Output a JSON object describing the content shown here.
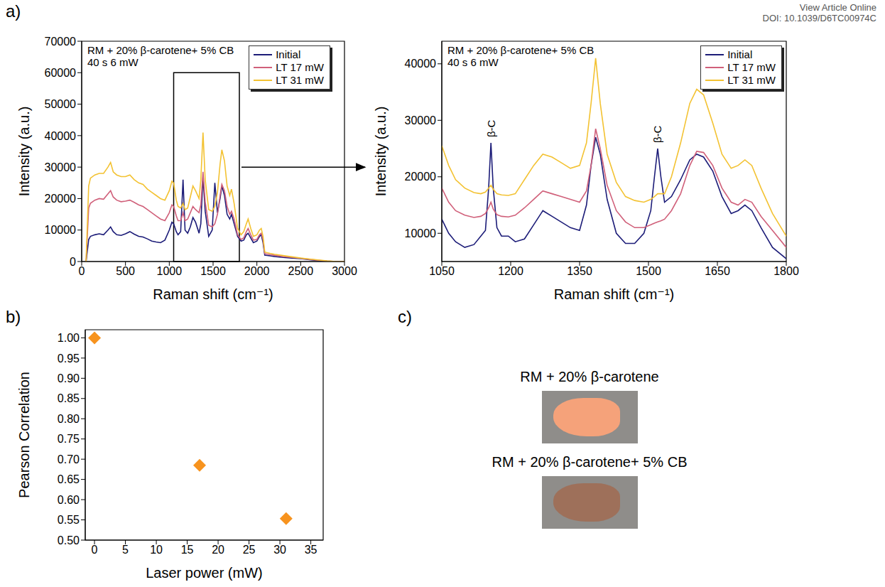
{
  "header": [
    "View Article Online",
    "DOI: 10.1039/D6TC00974C"
  ],
  "chart_data": [
    {
      "panel": "a)",
      "type": "line",
      "annotations": [
        "RM + 20% β-carotene+ 5% CB",
        "40 s 6 mW"
      ],
      "x_label": "Raman shift (cm⁻¹)",
      "y_label": "Intensity (a.u.)",
      "legend": "top-right",
      "xlim": [
        0,
        3000
      ],
      "xticks": [
        0,
        500,
        1000,
        1500,
        2000,
        2500,
        3000
      ],
      "ylim": [
        0,
        70000
      ],
      "yticks": [
        0,
        10000,
        20000,
        30000,
        40000,
        50000,
        60000,
        70000
      ],
      "x": [
        50,
        80,
        100,
        150,
        200,
        250,
        300,
        330,
        360,
        400,
        450,
        500,
        550,
        600,
        650,
        700,
        750,
        800,
        850,
        900,
        950,
        1000,
        1030,
        1050,
        1080,
        1100,
        1130,
        1157,
        1180,
        1210,
        1240,
        1270,
        1300,
        1340,
        1360,
        1385,
        1410,
        1450,
        1490,
        1520,
        1550,
        1580,
        1600,
        1630,
        1660,
        1690,
        1710,
        1740,
        1780,
        1820,
        1850,
        1880,
        1900,
        1930,
        1960,
        2000,
        2030,
        2050,
        2070,
        2090,
        2150,
        2200,
        2300,
        2400,
        2500,
        2600,
        2700,
        2800,
        2900,
        3000
      ],
      "series": [
        {
          "name": "Initial",
          "color": "#1c1c78",
          "values": [
            0,
            7000,
            8000,
            8500,
            8800,
            8500,
            10000,
            11000,
            9500,
            8500,
            8300,
            8800,
            9500,
            8700,
            8000,
            7800,
            7200,
            6500,
            6200,
            6000,
            6800,
            10000,
            12500,
            12000,
            9500,
            8500,
            9500,
            26000,
            10000,
            9000,
            11000,
            14000,
            12500,
            9000,
            12000,
            27000,
            16000,
            8000,
            10000,
            25000,
            15500,
            20000,
            24000,
            21000,
            15000,
            13500,
            15000,
            12000,
            8000,
            6500,
            6800,
            8500,
            9000,
            7500,
            6000,
            6500,
            8000,
            8500,
            6000,
            2000,
            1800,
            1600,
            1300,
            1100,
            900,
            600,
            300,
            100,
            0,
            0
          ]
        },
        {
          "name": "LT 17 mW",
          "color": "#d0607a",
          "values": [
            0,
            17000,
            18500,
            19500,
            20000,
            19800,
            21500,
            22500,
            20500,
            19500,
            19000,
            19200,
            19500,
            18800,
            18000,
            17500,
            16500,
            15500,
            14500,
            13500,
            13000,
            15500,
            18000,
            17500,
            14500,
            13000,
            13000,
            15500,
            13000,
            13500,
            15500,
            17500,
            16500,
            15500,
            18000,
            28500,
            19000,
            11500,
            11000,
            12000,
            15000,
            21000,
            24500,
            22500,
            17500,
            15000,
            16000,
            13500,
            8500,
            7000,
            7500,
            9500,
            10500,
            8500,
            6800,
            7000,
            8500,
            9000,
            7000,
            2500,
            2200,
            2000,
            1600,
            1300,
            1000,
            700,
            400,
            150,
            0,
            0
          ]
        },
        {
          "name": "LT 31 mW",
          "color": "#f3c232",
          "values": [
            0,
            24000,
            26500,
            27500,
            28000,
            28000,
            30000,
            31500,
            28500,
            27500,
            27000,
            27000,
            27500,
            26000,
            25000,
            24500,
            23000,
            22000,
            21000,
            20000,
            19500,
            22500,
            25500,
            25000,
            19500,
            17500,
            17000,
            18500,
            16500,
            17000,
            20500,
            24000,
            22500,
            20000,
            26000,
            41000,
            26000,
            16500,
            16000,
            17500,
            22000,
            31000,
            35500,
            32000,
            24000,
            21000,
            23000,
            18500,
            10500,
            8500,
            9500,
            12000,
            13500,
            10500,
            8000,
            8500,
            10000,
            10500,
            8000,
            3000,
            2600,
            2300,
            1900,
            1500,
            1100,
            800,
            500,
            200,
            0,
            0
          ]
        }
      ]
    },
    {
      "type": "line",
      "annotations": [
        "RM + 20% β-carotene+ 5% CB",
        "40 s 6 mW"
      ],
      "x_label": "Raman shift (cm⁻¹)",
      "y_label": "Intensity (a.u.)",
      "legend": "top-right",
      "xlim": [
        1050,
        1800
      ],
      "xticks": [
        1050,
        1200,
        1350,
        1500,
        1650,
        1800
      ],
      "ylim": [
        5000,
        44000
      ],
      "yticks": [
        10000,
        20000,
        30000,
        40000
      ],
      "peak_labels": [
        {
          "x": 1157,
          "label": "β-C"
        },
        {
          "x": 1520,
          "label": "β-C"
        }
      ],
      "x": [
        1050,
        1065,
        1080,
        1100,
        1120,
        1135,
        1145,
        1152,
        1157,
        1162,
        1170,
        1180,
        1195,
        1210,
        1230,
        1250,
        1270,
        1290,
        1310,
        1330,
        1350,
        1365,
        1375,
        1385,
        1395,
        1410,
        1430,
        1450,
        1470,
        1490,
        1505,
        1513,
        1520,
        1527,
        1535,
        1550,
        1570,
        1590,
        1605,
        1620,
        1640,
        1660,
        1680,
        1695,
        1710,
        1725,
        1745,
        1770,
        1800
      ],
      "series": [
        {
          "name": "Initial",
          "color": "#1c1c78",
          "values": [
            12500,
            10000,
            8500,
            7500,
            8000,
            9500,
            10500,
            18000,
            26000,
            18000,
            11000,
            9500,
            9500,
            8500,
            9000,
            11500,
            14000,
            13000,
            12000,
            11000,
            10500,
            15000,
            22000,
            27000,
            24000,
            16000,
            10000,
            8200,
            8200,
            10000,
            14000,
            20000,
            25000,
            20000,
            15500,
            16500,
            19500,
            23000,
            24000,
            23500,
            21000,
            16500,
            13500,
            14000,
            15000,
            14000,
            11000,
            7500,
            5500
          ]
        },
        {
          "name": "LT 17 mW",
          "color": "#d0607a",
          "values": [
            18000,
            15500,
            14000,
            13200,
            12800,
            13000,
            13500,
            14500,
            15500,
            14300,
            13300,
            13000,
            12900,
            13200,
            14500,
            16000,
            17500,
            17000,
            16500,
            16000,
            15500,
            17500,
            22000,
            28500,
            25000,
            18500,
            14000,
            12000,
            11000,
            11000,
            11500,
            11800,
            12000,
            12200,
            12500,
            14000,
            17000,
            22000,
            24500,
            24300,
            22000,
            18000,
            15500,
            15000,
            16000,
            15500,
            13000,
            10500,
            7500
          ]
        },
        {
          "name": "LT 31 mW",
          "color": "#f3c232",
          "values": [
            25500,
            22000,
            19500,
            18000,
            17200,
            17000,
            17300,
            18000,
            18500,
            17800,
            17000,
            16800,
            16700,
            17000,
            19500,
            22000,
            24000,
            23500,
            22500,
            21500,
            22000,
            26000,
            33000,
            41000,
            33000,
            24000,
            19000,
            16500,
            15800,
            15500,
            16000,
            16500,
            17000,
            17000,
            17000,
            20000,
            26000,
            33000,
            35500,
            34500,
            29500,
            24000,
            21500,
            22000,
            23000,
            22000,
            18000,
            13500,
            9500
          ]
        }
      ]
    },
    {
      "panel": "b)",
      "type": "scatter",
      "x_label": "Laser power (mW)",
      "y_label": "Pearson Correlation",
      "marker": "diamond",
      "color": "#f7931e",
      "x": [
        0,
        17,
        31
      ],
      "values": [
        1,
        0.685,
        0.553
      ],
      "xlim": [
        -1.5,
        37
      ],
      "xticks": [
        0,
        5,
        10,
        15,
        20,
        25,
        30,
        35
      ],
      "ylim": [
        0.5,
        1.02
      ],
      "yticks": [
        {
          "value": 0.5,
          "label": "0.50"
        },
        0.55,
        {
          "value": 0.6,
          "label": "0.60"
        },
        0.65,
        {
          "value": 0.7,
          "label": "0.70"
        },
        0.75,
        {
          "value": 0.8,
          "label": "0.80"
        },
        0.85,
        {
          "value": 0.9,
          "label": "0.90"
        },
        0.95,
        {
          "value": 1,
          "label": "1.00"
        }
      ]
    }
  ],
  "photos": {
    "panel": "c)",
    "items": [
      {
        "caption": "RM + 20% β-carotene",
        "color": "#f5a27a"
      },
      {
        "caption": "RM + 20% β-carotene+ 5% CB",
        "color": "#9e705a"
      }
    ]
  }
}
